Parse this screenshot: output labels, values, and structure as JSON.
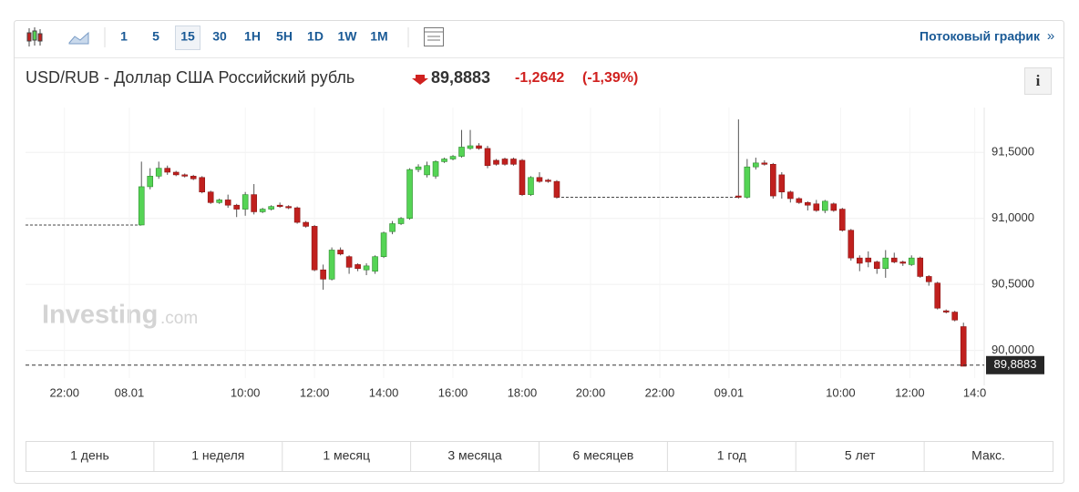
{
  "toolbar": {
    "intervals": [
      "1",
      "5",
      "15",
      "30",
      "1H",
      "5H",
      "1D",
      "1W",
      "1M"
    ],
    "selected_index": 2,
    "stream_link": "Потоковый график",
    "stream_arrow": "»"
  },
  "header": {
    "pair": "USD/RUB - Доллар США Российский рубль",
    "price": "89,8883",
    "change": "-1,2642",
    "change_pct": "(-1,39%)",
    "info": "i"
  },
  "logo": {
    "brand": "Investing",
    "suffix": ".com"
  },
  "chart_data": {
    "type": "candlestick",
    "x": [
      0,
      1,
      2,
      3,
      4,
      5,
      6,
      7,
      8,
      9,
      10,
      11,
      12,
      13,
      14,
      15,
      16,
      17,
      18,
      19,
      20,
      21,
      22,
      23,
      24,
      25,
      26,
      27,
      28,
      29,
      30,
      31,
      32,
      33,
      34,
      35,
      36,
      37,
      38,
      39,
      40,
      41,
      42,
      43,
      44,
      45,
      46,
      47,
      48,
      69,
      70,
      71,
      72,
      73,
      74,
      75,
      76,
      77,
      78,
      79,
      80,
      81,
      82,
      83,
      84,
      85,
      86,
      87,
      88,
      89,
      90,
      91,
      92,
      93,
      94,
      95
    ],
    "open": [
      90.95,
      91.24,
      91.32,
      91.38,
      91.35,
      91.33,
      91.32,
      91.31,
      91.2,
      91.12,
      91.14,
      91.1,
      91.07,
      91.18,
      91.05,
      91.07,
      91.1,
      91.09,
      91.08,
      90.97,
      90.94,
      90.61,
      90.54,
      90.76,
      90.71,
      90.65,
      90.61,
      90.6,
      90.71,
      90.9,
      90.96,
      91.0,
      91.37,
      91.33,
      91.32,
      91.43,
      91.45,
      91.47,
      91.53,
      91.55,
      91.53,
      91.44,
      91.45,
      91.45,
      91.44,
      91.18,
      91.31,
      91.29,
      91.28,
      91.17,
      91.16,
      91.39,
      91.42,
      91.41,
      91.33,
      91.2,
      91.15,
      91.12,
      91.11,
      91.06,
      91.11,
      91.07,
      90.91,
      90.7,
      90.7,
      90.67,
      90.62,
      90.7,
      90.67,
      90.65,
      90.7,
      90.56,
      90.51,
      90.3,
      90.29,
      90.18
    ],
    "high": [
      91.43,
      91.38,
      91.43,
      91.4,
      91.36,
      91.34,
      91.33,
      91.32,
      91.21,
      91.15,
      91.18,
      91.11,
      91.2,
      91.26,
      91.08,
      91.1,
      91.12,
      91.1,
      91.09,
      90.98,
      90.95,
      90.65,
      90.78,
      90.78,
      90.72,
      90.66,
      90.66,
      90.72,
      90.9,
      90.98,
      91.01,
      91.38,
      91.41,
      91.43,
      91.44,
      91.46,
      91.48,
      91.67,
      91.67,
      91.57,
      91.55,
      91.45,
      91.46,
      91.46,
      91.45,
      91.32,
      91.35,
      91.3,
      91.29,
      91.75,
      91.45,
      91.46,
      91.44,
      91.42,
      91.35,
      91.21,
      91.16,
      91.13,
      91.14,
      91.14,
      91.12,
      91.08,
      90.92,
      90.72,
      90.75,
      90.68,
      90.76,
      90.74,
      90.68,
      90.72,
      90.71,
      90.57,
      90.52,
      90.31,
      90.3,
      90.21
    ],
    "low": [
      90.95,
      91.22,
      91.3,
      91.33,
      91.32,
      91.31,
      91.29,
      91.19,
      91.11,
      91.11,
      91.08,
      91.01,
      91.02,
      91.03,
      91.04,
      91.06,
      91.08,
      91.07,
      90.96,
      90.93,
      90.6,
      90.46,
      90.53,
      90.72,
      90.58,
      90.6,
      90.57,
      90.58,
      90.7,
      90.88,
      90.95,
      90.99,
      91.35,
      91.31,
      91.3,
      91.42,
      91.44,
      91.46,
      91.52,
      91.52,
      91.38,
      91.4,
      91.4,
      91.4,
      91.17,
      91.17,
      91.27,
      91.27,
      91.15,
      91.15,
      91.15,
      91.37,
      91.4,
      91.15,
      91.15,
      91.12,
      91.11,
      91.06,
      91.05,
      91.04,
      91.05,
      90.9,
      90.68,
      90.6,
      90.63,
      90.58,
      90.55,
      90.66,
      90.64,
      90.64,
      90.55,
      90.49,
      90.31,
      90.28,
      90.22,
      89.88
    ],
    "close": [
      91.24,
      91.32,
      91.38,
      91.35,
      91.33,
      91.32,
      91.3,
      91.2,
      91.12,
      91.14,
      91.1,
      91.07,
      91.18,
      91.05,
      91.07,
      91.09,
      91.09,
      91.08,
      90.97,
      90.94,
      90.61,
      90.54,
      90.76,
      90.73,
      90.63,
      90.62,
      90.64,
      90.71,
      90.89,
      90.96,
      91.0,
      91.37,
      91.39,
      91.4,
      91.43,
      91.45,
      91.47,
      91.54,
      91.55,
      91.53,
      91.4,
      91.41,
      91.41,
      91.41,
      91.18,
      91.31,
      91.28,
      91.28,
      91.16,
      91.16,
      91.39,
      91.42,
      91.41,
      91.17,
      91.2,
      91.15,
      91.12,
      91.1,
      91.06,
      91.13,
      91.06,
      90.91,
      90.7,
      90.66,
      90.67,
      90.62,
      90.7,
      90.67,
      90.66,
      90.7,
      90.56,
      90.52,
      90.32,
      90.29,
      90.23,
      89.88
    ],
    "up_color": "#55d455",
    "down_color": "#c0201e",
    "flat_segments": [
      {
        "x": [
          -13.4,
          0
        ],
        "value": 90.95
      },
      {
        "x": [
          48,
          69
        ],
        "value": 91.16
      }
    ],
    "last_price": {
      "value": 89.8883,
      "label": "89,8883"
    },
    "xlim": [
      -13.4,
      97.4
    ],
    "ylim": [
      89.79,
      91.84
    ],
    "yticks": [
      {
        "value": 90.0,
        "label": "90,0000"
      },
      {
        "value": 90.5,
        "label": "90,5000"
      },
      {
        "value": 91.0,
        "label": "91,0000"
      },
      {
        "value": 91.5,
        "label": "91,5000"
      }
    ],
    "xticks": [
      {
        "value": -8.9,
        "label": "22:00"
      },
      {
        "value": -1.4,
        "label": "08.01"
      },
      {
        "value": 12,
        "label": "10:00"
      },
      {
        "value": 20,
        "label": "12:00"
      },
      {
        "value": 28,
        "label": "14:00"
      },
      {
        "value": 36,
        "label": "16:00"
      },
      {
        "value": 44,
        "label": "18:00"
      },
      {
        "value": 51.9,
        "label": "20:00"
      },
      {
        "value": 59.9,
        "label": "22:00"
      },
      {
        "value": 67.9,
        "label": "09.01"
      },
      {
        "value": 80.8,
        "label": "10:00"
      },
      {
        "value": 88.8,
        "label": "12:00"
      },
      {
        "value": 96.3,
        "label": "14:0"
      }
    ],
    "grid": true
  },
  "ranges": [
    "1 день",
    "1 неделя",
    "1 месяц",
    "3 месяца",
    "6 месяцев",
    "1 год",
    "5 лет",
    "Макс."
  ]
}
